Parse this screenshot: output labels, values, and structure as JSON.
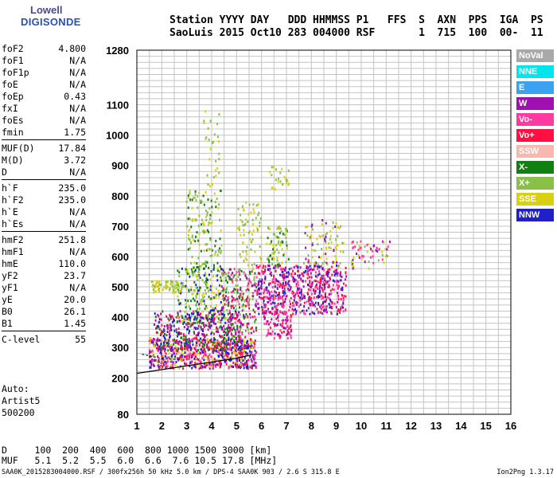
{
  "logo": {
    "line1": "Lowell",
    "line2": "DIGISONDE"
  },
  "header": {
    "labels": "Station YYYY DAY   DDD HHMMSS P1   FFS  S  AXN  PPS  IGA  PS",
    "values": "SaoLuis 2015 Oct10 283 004000 RSF       1  715  100  00-  11"
  },
  "params": [
    [
      {
        "k": "foF2",
        "v": "4.800"
      },
      {
        "k": "foF1",
        "v": "N/A"
      },
      {
        "k": "foF1p",
        "v": "N/A"
      },
      {
        "k": "foE",
        "v": "N/A"
      },
      {
        "k": "foEp",
        "v": "0.43"
      },
      {
        "k": "fxI",
        "v": "N/A"
      },
      {
        "k": "foEs",
        "v": "N/A"
      },
      {
        "k": "fmin",
        "v": "1.75"
      }
    ],
    [
      {
        "k": "MUF(D)",
        "v": "17.84"
      },
      {
        "k": "M(D)",
        "v": "3.72"
      },
      {
        "k": "D",
        "v": "N/A"
      }
    ],
    [
      {
        "k": "h`F",
        "v": "235.0"
      },
      {
        "k": "h`F2",
        "v": "235.0"
      },
      {
        "k": "h`E",
        "v": "N/A"
      },
      {
        "k": "h`Es",
        "v": "N/A"
      }
    ],
    [
      {
        "k": "hmF2",
        "v": "251.8"
      },
      {
        "k": "hmF1",
        "v": "N/A"
      },
      {
        "k": "hmE",
        "v": "110.0"
      },
      {
        "k": "yF2",
        "v": "23.7"
      },
      {
        "k": "yF1",
        "v": "N/A"
      },
      {
        "k": "yE",
        "v": "20.0"
      },
      {
        "k": "B0",
        "v": "26.1"
      },
      {
        "k": "B1",
        "v": "1.45"
      }
    ],
    [
      {
        "k": "C-level",
        "v": "55"
      }
    ]
  ],
  "autoscaling": {
    "line1": "Auto:",
    "line2": "Artist5",
    "line3": "500200"
  },
  "bottom": {
    "d_row": "D     100  200  400  600  800 1000 1500 3000 [km]",
    "muf_row": "MUF   5.1  5.2  5.5  6.0  6.6  7.6 10.5 17.8 [MHz]"
  },
  "footer": "SAA0K_2015283004000.RSF / 300fx256h 50 kHz 5.0 km / DPS-4 SAA0K 903 / 2.6 S 315.8 E",
  "version": "Ion2Png 1.3.17",
  "legend": [
    {
      "label": "NoVal",
      "color": "#a9a9a9"
    },
    {
      "label": "NNE",
      "color": "#00e5ee"
    },
    {
      "label": "E",
      "color": "#3aa2f0"
    },
    {
      "label": "W",
      "color": "#a010b0"
    },
    {
      "label": "Vo-",
      "color": "#ff3aa0"
    },
    {
      "label": "Vo+",
      "color": "#ff1040"
    },
    {
      "label": "SSW",
      "color": "#f8b8b0"
    },
    {
      "label": "X-",
      "color": "#108010"
    },
    {
      "label": "X+",
      "color": "#88c048"
    },
    {
      "label": "SSE",
      "color": "#d8d010"
    },
    {
      "label": "NNW",
      "color": "#2020c8"
    }
  ],
  "chart_data": {
    "type": "scatter",
    "xlim": [
      1,
      16
    ],
    "ylim": [
      80,
      1280
    ],
    "x_ticks": [
      "1",
      "2",
      "3",
      "4",
      "5",
      "6",
      "7",
      "8",
      "9",
      "10",
      "11",
      "12",
      "13",
      "14",
      "15",
      "16"
    ],
    "y_ticks": [
      "80",
      "200",
      "300",
      "400",
      "500",
      "600",
      "700",
      "800",
      "900",
      "1000",
      "1100",
      "1280"
    ],
    "y_tick_values": [
      80,
      200,
      300,
      400,
      500,
      600,
      700,
      800,
      900,
      1000,
      1100,
      1280
    ],
    "grid": true,
    "legend_placement": "right",
    "clusters": [
      {
        "x0": 1.5,
        "x1": 5.8,
        "y0": 230,
        "y1": 330,
        "colors": [
          "#ff1040",
          "#ff3aa0",
          "#a010b0",
          "#2020c8",
          "#d8d010"
        ],
        "n": 700
      },
      {
        "x0": 1.7,
        "x1": 5.2,
        "y0": 290,
        "y1": 420,
        "colors": [
          "#a010b0",
          "#2020c8",
          "#ff1040",
          "#108010"
        ],
        "n": 400
      },
      {
        "x0": 2.6,
        "x1": 4.6,
        "y0": 380,
        "y1": 560,
        "colors": [
          "#88c048",
          "#108010",
          "#d8d010",
          "#2020c8"
        ],
        "n": 230
      },
      {
        "x0": 3.0,
        "x1": 4.4,
        "y0": 560,
        "y1": 820,
        "colors": [
          "#d8d010",
          "#88c048",
          "#108010"
        ],
        "n": 140
      },
      {
        "x0": 3.6,
        "x1": 4.3,
        "y0": 820,
        "y1": 1080,
        "colors": [
          "#d8d010",
          "#88c048"
        ],
        "n": 30
      },
      {
        "x0": 4.4,
        "x1": 5.8,
        "y0": 330,
        "y1": 560,
        "colors": [
          "#ff1040",
          "#ff3aa0",
          "#a010b0",
          "#88c048",
          "#108010"
        ],
        "n": 260
      },
      {
        "x0": 5.0,
        "x1": 6.0,
        "y0": 560,
        "y1": 780,
        "colors": [
          "#d8d010",
          "#88c048"
        ],
        "n": 70
      },
      {
        "x0": 5.8,
        "x1": 9.4,
        "y0": 410,
        "y1": 570,
        "colors": [
          "#ff1040",
          "#ff3aa0",
          "#a010b0",
          "#2020c8"
        ],
        "n": 620
      },
      {
        "x0": 6.1,
        "x1": 7.2,
        "y0": 330,
        "y1": 420,
        "colors": [
          "#ff1040",
          "#ff3aa0",
          "#a010b0"
        ],
        "n": 90
      },
      {
        "x0": 6.2,
        "x1": 7.1,
        "y0": 570,
        "y1": 700,
        "colors": [
          "#88c048",
          "#d8d010",
          "#108010"
        ],
        "n": 70
      },
      {
        "x0": 7.7,
        "x1": 9.3,
        "y0": 560,
        "y1": 720,
        "colors": [
          "#d8d010",
          "#88c048",
          "#a010b0"
        ],
        "n": 90
      },
      {
        "x0": 9.6,
        "x1": 11.2,
        "y0": 560,
        "y1": 650,
        "colors": [
          "#a010b0",
          "#ff3aa0",
          "#88c048",
          "#d8d010"
        ],
        "n": 60
      },
      {
        "x0": 1.6,
        "x1": 2.9,
        "y0": 480,
        "y1": 520,
        "colors": [
          "#d8d010",
          "#88c048"
        ],
        "n": 70
      },
      {
        "x0": 6.3,
        "x1": 7.1,
        "y0": 820,
        "y1": 900,
        "colors": [
          "#d8d010",
          "#88c048"
        ],
        "n": 25
      }
    ],
    "trace": [
      [
        1.0,
        215
      ],
      [
        2.0,
        227
      ],
      [
        3.0,
        240
      ],
      [
        4.0,
        252
      ],
      [
        5.0,
        265
      ],
      [
        5.6,
        275
      ]
    ],
    "trace2": [
      [
        1.2,
        278
      ],
      [
        2.0,
        264
      ],
      [
        2.8,
        260
      ]
    ]
  }
}
